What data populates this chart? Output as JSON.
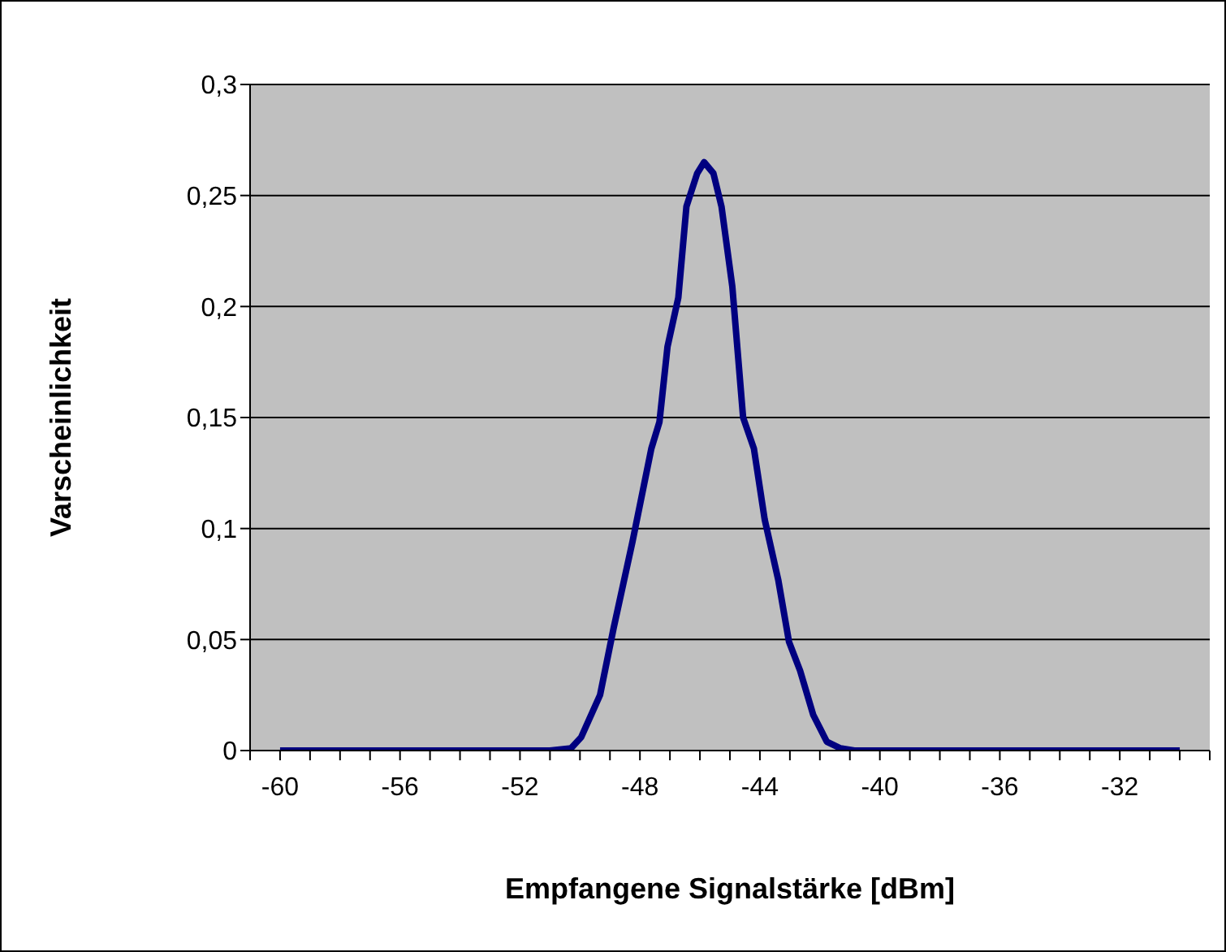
{
  "chart_data": {
    "type": "line",
    "xlabel": "Empfangene Signalstärke [dBm]",
    "ylabel": "Varscheinlichkeit",
    "x": [
      -60,
      -59,
      -58,
      -57,
      -56,
      -55,
      -54,
      -53,
      -52,
      -51,
      -50.3,
      -49.96,
      -49.33,
      -48.88,
      -48.25,
      -47.62,
      -47.35,
      -47.08,
      -46.72,
      -46.45,
      -46.09,
      -45.86,
      -45.55,
      -45.28,
      -44.92,
      -44.56,
      -44.2,
      -43.84,
      -43.39,
      -43.03,
      -42.66,
      -42.22,
      -41.77,
      -41.31,
      -40.85,
      -40,
      -39,
      -38,
      -37,
      -36,
      -35,
      -34,
      -33,
      -32,
      -31,
      -30
    ],
    "series": [
      {
        "color": "#000080",
        "values": [
          0,
          0,
          0,
          0,
          0,
          0,
          0,
          0,
          0,
          0,
          0.001,
          0.006,
          0.025,
          0.055,
          0.094,
          0.136,
          0.148,
          0.182,
          0.204,
          0.245,
          0.26,
          0.265,
          0.26,
          0.245,
          0.209,
          0.15,
          0.136,
          0.104,
          0.077,
          0.049,
          0.036,
          0.016,
          0.004,
          0.001,
          0,
          0,
          0,
          0,
          0,
          0,
          0,
          0,
          0,
          0,
          0,
          0
        ]
      }
    ],
    "xlim": [
      -61,
      -29
    ],
    "xticks": [
      {
        "value": -61,
        "label": null
      },
      -60,
      {
        "value": -59,
        "label": null
      },
      {
        "value": -58,
        "label": null
      },
      {
        "value": -57,
        "label": null
      },
      -56,
      {
        "value": -55,
        "label": null
      },
      {
        "value": -54,
        "label": null
      },
      {
        "value": -53,
        "label": null
      },
      -52,
      {
        "value": -51,
        "label": null
      },
      {
        "value": -50,
        "label": null
      },
      {
        "value": -49,
        "label": null
      },
      -48,
      {
        "value": -47,
        "label": null
      },
      {
        "value": -46,
        "label": null
      },
      {
        "value": -45,
        "label": null
      },
      -44,
      {
        "value": -43,
        "label": null
      },
      {
        "value": -42,
        "label": null
      },
      {
        "value": -41,
        "label": null
      },
      -40,
      {
        "value": -39,
        "label": null
      },
      {
        "value": -38,
        "label": null
      },
      {
        "value": -37,
        "label": null
      },
      -36,
      {
        "value": -35,
        "label": null
      },
      {
        "value": -34,
        "label": null
      },
      {
        "value": -33,
        "label": null
      },
      -32,
      {
        "value": -31,
        "label": null
      },
      {
        "value": -30,
        "label": null
      },
      {
        "value": -29,
        "label": null
      }
    ],
    "ylim": [
      0,
      0.3
    ],
    "yticks": [
      0,
      {
        "value": 0.05,
        "label": "0,05"
      },
      {
        "value": 0.1,
        "label": "0,1"
      },
      {
        "value": 0.15,
        "label": "0,15"
      },
      {
        "value": 0.2,
        "label": "0,2"
      },
      {
        "value": 0.25,
        "label": "0,25"
      },
      {
        "value": 0.3,
        "label": "0,3"
      }
    ],
    "grid": "y",
    "legend": false,
    "marker": "none",
    "line_style": "solid"
  }
}
